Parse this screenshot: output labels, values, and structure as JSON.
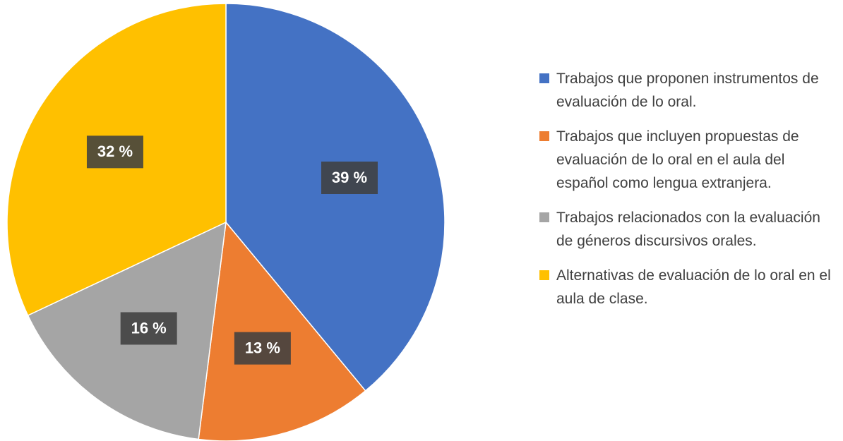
{
  "chart_data": {
    "type": "pie",
    "categories": [
      "Trabajos que proponen instrumentos de evaluación de lo oral.",
      "Trabajos que incluyen propuestas de evaluación de lo oral en el aula del español como lengua extranjera.",
      "Trabajos relacionados con la evaluación de géneros discursivos orales.",
      "Alternativas de evaluación de lo oral en el aula de clase."
    ],
    "values": [
      39,
      13,
      16,
      32
    ],
    "data_labels": [
      "39 %",
      "13 %",
      "16 %",
      "32 %"
    ],
    "colors": [
      "#4472C4",
      "#ED7D31",
      "#A5A5A5",
      "#FFC000"
    ],
    "legend_position": "right",
    "start": "top, clockwise"
  }
}
